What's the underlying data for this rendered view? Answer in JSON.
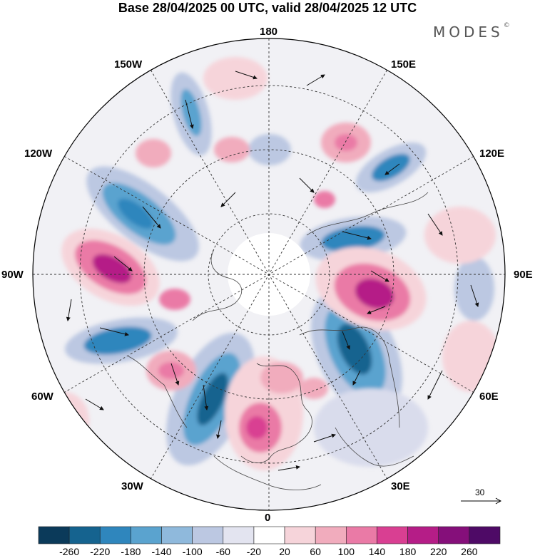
{
  "title": "Base 28/04/2025 00 UTC, valid 28/04/2025 12 UTC",
  "brand": {
    "text": "MODES",
    "mark": "©"
  },
  "map": {
    "projection": "polar stereographic, north pole",
    "longitude_labels": {
      "top": "180",
      "bottom": "0",
      "left": "90W",
      "right": "90E",
      "upper_left_1": "150W",
      "upper_left_2": "120W",
      "upper_right_1": "150E",
      "upper_right_2": "120E",
      "lower_left_1": "60W",
      "lower_left_2": "30W",
      "lower_right_1": "60E",
      "lower_right_2": "30E"
    },
    "reference_vector": "30"
  },
  "colorbar": {
    "tick_labels": [
      "-260",
      "-220",
      "-180",
      "-140",
      "-100",
      "-60",
      "-20",
      "20",
      "60",
      "100",
      "140",
      "180",
      "220",
      "260"
    ],
    "colors": [
      "#0b3a5a",
      "#15638f",
      "#2f86bd",
      "#5aa3cf",
      "#8fb9dc",
      "#bcc8e2",
      "#e3e4f0",
      "#ffffff",
      "#f6d4da",
      "#f1acbd",
      "#ea7aa6",
      "#d93f92",
      "#b51d87",
      "#850f7a",
      "#4e0a66"
    ]
  }
}
